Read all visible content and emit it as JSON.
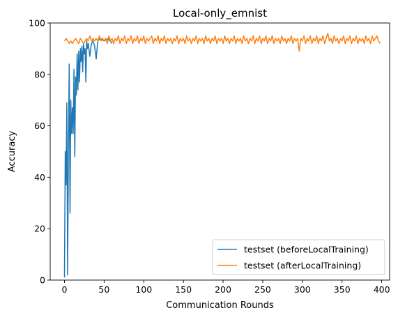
{
  "chart_data": {
    "type": "line",
    "title": "Local-only_emnist",
    "xlabel": "Communication Rounds",
    "ylabel": "Accuracy",
    "xlim": [
      -18,
      410
    ],
    "ylim": [
      0,
      100
    ],
    "xticks": [
      0,
      50,
      100,
      150,
      200,
      250,
      300,
      350,
      400
    ],
    "yticks": [
      0,
      20,
      40,
      60,
      80,
      100
    ],
    "grid": false,
    "legend_position": "lower-right",
    "series": [
      {
        "name": "testset (beforeLocalTraining)",
        "color": "#1f77b4",
        "points": [
          [
            0,
            1
          ],
          [
            1,
            50
          ],
          [
            2,
            37
          ],
          [
            3,
            69
          ],
          [
            4,
            2
          ],
          [
            5,
            52
          ],
          [
            6,
            84
          ],
          [
            7,
            26
          ],
          [
            8,
            70
          ],
          [
            9,
            57
          ],
          [
            10,
            67
          ],
          [
            11,
            57
          ],
          [
            12,
            82
          ],
          [
            13,
            48
          ],
          [
            14,
            79
          ],
          [
            15,
            72
          ],
          [
            16,
            88
          ],
          [
            17,
            74
          ],
          [
            18,
            89
          ],
          [
            19,
            77
          ],
          [
            20,
            90
          ],
          [
            21,
            85
          ],
          [
            22,
            91
          ],
          [
            23,
            81
          ],
          [
            24,
            92
          ],
          [
            25,
            88
          ],
          [
            26,
            90
          ],
          [
            27,
            77
          ],
          [
            28,
            93
          ],
          [
            29,
            90
          ],
          [
            30,
            92
          ],
          [
            32,
            87
          ],
          [
            34,
            92
          ],
          [
            36,
            93
          ],
          [
            38,
            91
          ],
          [
            40,
            86
          ],
          [
            42,
            93
          ],
          [
            45,
            94
          ],
          [
            50,
            93
          ],
          [
            55,
            94
          ],
          [
            60,
            92
          ]
        ]
      },
      {
        "name": "testset (afterLocalTraining)",
        "color": "#ff7f0e",
        "points": [
          [
            0,
            93
          ],
          [
            2,
            94
          ],
          [
            4,
            93
          ],
          [
            6,
            92
          ],
          [
            8,
            93
          ],
          [
            10,
            92
          ],
          [
            12,
            93
          ],
          [
            14,
            94
          ],
          [
            16,
            93
          ],
          [
            18,
            92
          ],
          [
            20,
            94
          ],
          [
            22,
            93
          ],
          [
            24,
            92
          ],
          [
            26,
            93
          ],
          [
            28,
            94
          ],
          [
            30,
            93
          ],
          [
            32,
            95
          ],
          [
            34,
            93
          ],
          [
            36,
            94
          ],
          [
            38,
            93
          ],
          [
            40,
            94
          ],
          [
            42,
            93
          ],
          [
            44,
            95
          ],
          [
            46,
            93
          ],
          [
            48,
            94
          ],
          [
            50,
            93
          ],
          [
            52,
            94
          ],
          [
            54,
            92
          ],
          [
            56,
            95
          ],
          [
            58,
            93
          ],
          [
            60,
            94
          ],
          [
            62,
            92
          ],
          [
            64,
            94
          ],
          [
            66,
            93
          ],
          [
            68,
            95
          ],
          [
            70,
            92
          ],
          [
            72,
            94
          ],
          [
            74,
            93
          ],
          [
            76,
            95
          ],
          [
            78,
            92
          ],
          [
            80,
            94
          ],
          [
            82,
            93
          ],
          [
            84,
            95
          ],
          [
            86,
            92
          ],
          [
            88,
            94
          ],
          [
            90,
            93
          ],
          [
            92,
            95
          ],
          [
            94,
            92
          ],
          [
            96,
            94
          ],
          [
            98,
            93
          ],
          [
            100,
            95
          ],
          [
            102,
            92
          ],
          [
            104,
            94
          ],
          [
            106,
            93
          ],
          [
            108,
            94
          ],
          [
            110,
            95
          ],
          [
            112,
            92
          ],
          [
            114,
            94
          ],
          [
            116,
            93
          ],
          [
            118,
            95
          ],
          [
            120,
            92
          ],
          [
            122,
            94
          ],
          [
            124,
            93
          ],
          [
            126,
            95
          ],
          [
            128,
            92
          ],
          [
            130,
            94
          ],
          [
            132,
            93
          ],
          [
            134,
            94
          ],
          [
            136,
            92
          ],
          [
            138,
            94
          ],
          [
            140,
            93
          ],
          [
            142,
            95
          ],
          [
            144,
            92
          ],
          [
            146,
            94
          ],
          [
            148,
            93
          ],
          [
            150,
            94
          ],
          [
            152,
            92
          ],
          [
            154,
            95
          ],
          [
            156,
            93
          ],
          [
            158,
            94
          ],
          [
            160,
            92
          ],
          [
            162,
            94
          ],
          [
            164,
            93
          ],
          [
            166,
            95
          ],
          [
            168,
            92
          ],
          [
            170,
            94
          ],
          [
            172,
            93
          ],
          [
            174,
            94
          ],
          [
            176,
            92
          ],
          [
            178,
            95
          ],
          [
            180,
            93
          ],
          [
            182,
            94
          ],
          [
            184,
            92
          ],
          [
            186,
            94
          ],
          [
            188,
            93
          ],
          [
            190,
            95
          ],
          [
            192,
            92
          ],
          [
            194,
            94
          ],
          [
            196,
            93
          ],
          [
            198,
            94
          ],
          [
            200,
            92
          ],
          [
            202,
            95
          ],
          [
            204,
            93
          ],
          [
            206,
            94
          ],
          [
            208,
            92
          ],
          [
            210,
            94
          ],
          [
            212,
            93
          ],
          [
            214,
            95
          ],
          [
            216,
            92
          ],
          [
            218,
            94
          ],
          [
            220,
            93
          ],
          [
            222,
            94
          ],
          [
            224,
            92
          ],
          [
            226,
            95
          ],
          [
            228,
            93
          ],
          [
            230,
            94
          ],
          [
            232,
            92
          ],
          [
            234,
            94
          ],
          [
            236,
            93
          ],
          [
            238,
            95
          ],
          [
            240,
            92
          ],
          [
            242,
            94
          ],
          [
            244,
            93
          ],
          [
            246,
            95
          ],
          [
            248,
            92
          ],
          [
            250,
            94
          ],
          [
            252,
            93
          ],
          [
            254,
            95
          ],
          [
            256,
            92
          ],
          [
            258,
            94
          ],
          [
            260,
            93
          ],
          [
            262,
            95
          ],
          [
            264,
            92
          ],
          [
            266,
            94
          ],
          [
            268,
            93
          ],
          [
            270,
            94
          ],
          [
            272,
            92
          ],
          [
            274,
            95
          ],
          [
            276,
            93
          ],
          [
            278,
            94
          ],
          [
            280,
            92
          ],
          [
            282,
            94
          ],
          [
            284,
            93
          ],
          [
            286,
            95
          ],
          [
            288,
            92
          ],
          [
            290,
            94
          ],
          [
            292,
            93
          ],
          [
            294,
            94
          ],
          [
            296,
            89
          ],
          [
            298,
            94
          ],
          [
            300,
            93
          ],
          [
            302,
            95
          ],
          [
            304,
            92
          ],
          [
            306,
            94
          ],
          [
            308,
            93
          ],
          [
            310,
            95
          ],
          [
            312,
            92
          ],
          [
            314,
            94
          ],
          [
            316,
            93
          ],
          [
            318,
            95
          ],
          [
            320,
            92
          ],
          [
            322,
            94
          ],
          [
            324,
            93
          ],
          [
            326,
            95
          ],
          [
            328,
            92
          ],
          [
            330,
            94
          ],
          [
            332,
            96
          ],
          [
            334,
            93
          ],
          [
            336,
            94
          ],
          [
            338,
            92
          ],
          [
            340,
            95
          ],
          [
            342,
            93
          ],
          [
            344,
            94
          ],
          [
            346,
            92
          ],
          [
            348,
            94
          ],
          [
            350,
            93
          ],
          [
            352,
            95
          ],
          [
            354,
            92
          ],
          [
            356,
            94
          ],
          [
            358,
            93
          ],
          [
            360,
            95
          ],
          [
            362,
            92
          ],
          [
            364,
            94
          ],
          [
            366,
            93
          ],
          [
            368,
            95
          ],
          [
            370,
            92
          ],
          [
            372,
            94
          ],
          [
            374,
            93
          ],
          [
            376,
            94
          ],
          [
            378,
            92
          ],
          [
            380,
            95
          ],
          [
            382,
            93
          ],
          [
            384,
            94
          ],
          [
            386,
            92
          ],
          [
            388,
            95
          ],
          [
            390,
            93
          ],
          [
            392,
            94
          ],
          [
            394,
            95
          ],
          [
            396,
            93
          ],
          [
            398,
            92
          ]
        ]
      }
    ]
  }
}
